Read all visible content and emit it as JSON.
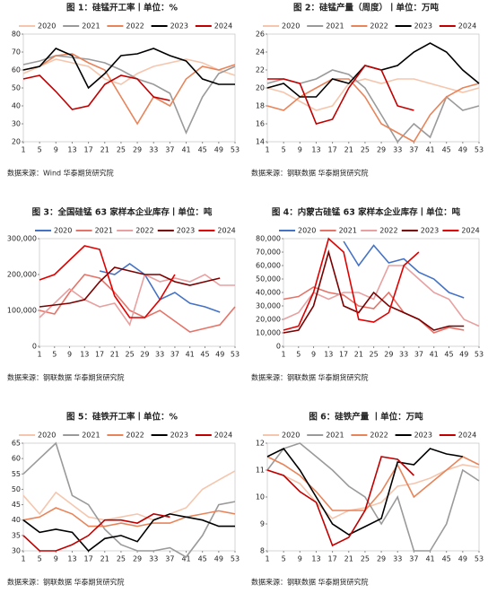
{
  "chart_data": [
    {
      "type": "line",
      "title": "图 1：硅锰开工率丨单位：%",
      "source": "数据来源：Wind  华泰期货研究院",
      "legend": "top",
      "x": [
        1,
        5,
        9,
        13,
        17,
        21,
        25,
        29,
        33,
        37,
        41,
        45,
        49,
        53
      ],
      "xlim": [
        1,
        53
      ],
      "xticks": [
        1,
        5,
        9,
        13,
        17,
        21,
        25,
        29,
        33,
        37,
        41,
        45,
        49,
        53
      ],
      "ylim": [
        20,
        80
      ],
      "yticks": [
        20,
        30,
        40,
        50,
        60,
        70,
        80
      ],
      "series": [
        {
          "name": "2020",
          "color": "#f5c6ad",
          "values": [
            58,
            62,
            66,
            64,
            62,
            55,
            52,
            58,
            62,
            64,
            66,
            64,
            60,
            57
          ]
        },
        {
          "name": "2021",
          "color": "#9a9a9a",
          "values": [
            63,
            65,
            68,
            67,
            66,
            64,
            60,
            55,
            52,
            47,
            25,
            45,
            58,
            62
          ]
        },
        {
          "name": "2022",
          "color": "#e8845a",
          "values": [
            60,
            62,
            68,
            69,
            64,
            60,
            45,
            30,
            45,
            40,
            55,
            62,
            60,
            63
          ]
        },
        {
          "name": "2023",
          "color": "#000000",
          "values": [
            60,
            62,
            72,
            68,
            50,
            58,
            68,
            69,
            72,
            68,
            65,
            55,
            52,
            52
          ]
        },
        {
          "name": "2024",
          "color": "#c00000",
          "values": [
            55,
            57,
            48,
            38,
            40,
            52,
            57,
            55,
            45,
            43,
            null,
            null,
            null,
            null
          ]
        }
      ]
    },
    {
      "type": "line",
      "title": "图 2：硅锰产量（周度）丨单位：万吨",
      "source": "数据来源：钢联数据  华泰期货研究院",
      "legend": "top",
      "x": [
        1,
        5,
        9,
        13,
        17,
        21,
        25,
        29,
        33,
        37,
        41,
        45,
        49,
        53
      ],
      "xlim": [
        1,
        53
      ],
      "xticks": [
        1,
        5,
        9,
        13,
        17,
        21,
        25,
        29,
        33,
        37,
        41,
        45,
        49,
        53
      ],
      "ylim": [
        14,
        26
      ],
      "yticks": [
        14,
        16,
        18,
        20,
        22,
        24,
        26
      ],
      "series": [
        {
          "name": "2020",
          "color": "#f5c6ad",
          "values": [
            20,
            19.5,
            18.5,
            17.5,
            18,
            20.5,
            21,
            20.5,
            21,
            21,
            20.5,
            20,
            19.5,
            20
          ]
        },
        {
          "name": "2021",
          "color": "#9a9a9a",
          "values": [
            20.5,
            21,
            20.5,
            21,
            22,
            21.5,
            20,
            17,
            14,
            16,
            14.5,
            19,
            17.5,
            18
          ]
        },
        {
          "name": "2022",
          "color": "#e8845a",
          "values": [
            18,
            17.5,
            19,
            20,
            21,
            21,
            19,
            16,
            15,
            14,
            17,
            19,
            20,
            20.5
          ]
        },
        {
          "name": "2023",
          "color": "#000000",
          "values": [
            20,
            20.5,
            19,
            19,
            21,
            20.5,
            22.5,
            22,
            22.5,
            24,
            25,
            24,
            22,
            20.5
          ]
        },
        {
          "name": "2024",
          "color": "#c00000",
          "values": [
            21,
            21,
            20.5,
            16,
            16.5,
            20,
            22.5,
            22,
            18,
            17.5,
            null,
            null,
            null,
            null
          ]
        }
      ]
    },
    {
      "type": "line",
      "title": "图 3：全国硅锰 63 家样本企业库存丨单位：吨",
      "source": "数据来源：钢联数据  华泰期货研究院",
      "legend": "top",
      "x": [
        1,
        5,
        9,
        13,
        17,
        21,
        25,
        29,
        33,
        37,
        41,
        45,
        49,
        53
      ],
      "xlim": [
        1,
        53
      ],
      "xticks": [
        1,
        5,
        9,
        13,
        17,
        21,
        25,
        29,
        33,
        37,
        41,
        45,
        49,
        53
      ],
      "ylim": [
        0,
        300000
      ],
      "yticks": [
        0,
        {
          "value": 100000,
          "label": "100,000"
        },
        {
          "value": 200000,
          "label": "200,000"
        },
        {
          "value": 300000,
          "label": "300,000"
        }
      ],
      "series": [
        {
          "name": "2020",
          "color": "#4472c4",
          "values": [
            null,
            null,
            null,
            null,
            210000,
            200000,
            230000,
            200000,
            130000,
            150000,
            120000,
            110000,
            95000,
            null
          ]
        },
        {
          "name": "2021",
          "color": "#e57368",
          "values": [
            100000,
            90000,
            150000,
            200000,
            190000,
            150000,
            100000,
            80000,
            100000,
            70000,
            40000,
            50000,
            60000,
            110000
          ]
        },
        {
          "name": "2022",
          "color": "#e8a0a0",
          "values": [
            80000,
            120000,
            160000,
            130000,
            110000,
            120000,
            60000,
            200000,
            180000,
            190000,
            180000,
            200000,
            170000,
            170000
          ]
        },
        {
          "name": "2023",
          "color": "#7b0000",
          "values": [
            110000,
            115000,
            120000,
            130000,
            180000,
            220000,
            210000,
            200000,
            200000,
            180000,
            170000,
            180000,
            190000,
            null
          ]
        },
        {
          "name": "2024",
          "color": "#e00000",
          "values": [
            185000,
            200000,
            240000,
            280000,
            270000,
            140000,
            80000,
            80000,
            130000,
            200000,
            null,
            null,
            null,
            null
          ]
        }
      ]
    },
    {
      "type": "line",
      "title": "图 4：内蒙古硅锰 63 家样本企业库存丨单位：吨",
      "source": "数据来源：钢联数据  华泰期货研究院",
      "legend": "top",
      "x": [
        1,
        5,
        9,
        13,
        17,
        21,
        25,
        29,
        33,
        37,
        41,
        45,
        49,
        53
      ],
      "xlim": [
        1,
        53
      ],
      "xticks": [
        1,
        5,
        9,
        13,
        17,
        21,
        25,
        29,
        33,
        37,
        41,
        45,
        49,
        53
      ],
      "ylim": [
        0,
        80000
      ],
      "yticks": [
        0,
        {
          "value": 10000,
          "label": "10,000"
        },
        {
          "value": 20000,
          "label": "20,000"
        },
        {
          "value": 30000,
          "label": "30,000"
        },
        {
          "value": 40000,
          "label": "40,000"
        },
        {
          "value": 50000,
          "label": "50,000"
        },
        {
          "value": 60000,
          "label": "60,000"
        },
        {
          "value": 70000,
          "label": "70,000"
        },
        {
          "value": 80000,
          "label": "80,000"
        }
      ],
      "series": [
        {
          "name": "2020",
          "color": "#4472c4",
          "values": [
            null,
            null,
            null,
            null,
            78000,
            60000,
            75000,
            62000,
            65000,
            55000,
            50000,
            40000,
            36000,
            null
          ]
        },
        {
          "name": "2021",
          "color": "#e57368",
          "values": [
            35000,
            37000,
            44000,
            40000,
            38000,
            30000,
            28000,
            40000,
            25000,
            20000,
            10000,
            14000,
            12000,
            null
          ]
        },
        {
          "name": "2022",
          "color": "#e8a0a0",
          "values": [
            20000,
            25000,
            40000,
            35000,
            40000,
            40000,
            35000,
            60000,
            60000,
            50000,
            40000,
            35000,
            20000,
            15000
          ]
        },
        {
          "name": "2023",
          "color": "#7b0000",
          "values": [
            10000,
            12000,
            30000,
            70000,
            30000,
            25000,
            40000,
            30000,
            25000,
            20000,
            12000,
            15000,
            15000,
            null
          ]
        },
        {
          "name": "2024",
          "color": "#e00000",
          "values": [
            12000,
            15000,
            40000,
            80000,
            70000,
            20000,
            18000,
            25000,
            60000,
            70000,
            null,
            null,
            null,
            null
          ]
        }
      ]
    },
    {
      "type": "line",
      "title": "图 5：硅铁开工率丨单位：%",
      "source": "数据来源：钢联数据  华泰期货研究院",
      "legend": "top",
      "x": [
        1,
        5,
        9,
        13,
        17,
        21,
        25,
        29,
        33,
        37,
        41,
        45,
        49,
        53
      ],
      "xlim": [
        1,
        53
      ],
      "xticks": [
        1,
        5,
        9,
        13,
        17,
        21,
        25,
        29,
        33,
        37,
        41,
        45,
        49,
        53
      ],
      "ylim": [
        30,
        65
      ],
      "yticks": [
        30,
        35,
        40,
        45,
        50,
        55,
        60,
        65
      ],
      "series": [
        {
          "name": "2020",
          "color": "#f5c6ad",
          "values": [
            48,
            42,
            49,
            45,
            41,
            40,
            41,
            42,
            40,
            42,
            44,
            50,
            53,
            56
          ]
        },
        {
          "name": "2021",
          "color": "#9a9a9a",
          "values": [
            55,
            60,
            65,
            48,
            45,
            37,
            32,
            30,
            30,
            31,
            28,
            35,
            45,
            46
          ]
        },
        {
          "name": "2022",
          "color": "#e8845a",
          "values": [
            40,
            41,
            44,
            42,
            38,
            38,
            39,
            38,
            39,
            39,
            41,
            42,
            43,
            42
          ]
        },
        {
          "name": "2023",
          "color": "#000000",
          "values": [
            40,
            36,
            37,
            36,
            30,
            34,
            35,
            33,
            40,
            42,
            41,
            40,
            38,
            38
          ]
        },
        {
          "name": "2024",
          "color": "#c00000",
          "values": [
            35,
            30,
            30,
            32,
            35,
            40,
            40,
            39,
            42,
            41,
            null,
            null,
            null,
            null
          ]
        }
      ]
    },
    {
      "type": "line",
      "title": "图 6：硅铁产量 丨单位：万吨",
      "source": "数据来源：钢联数据  华泰期货研究院",
      "legend": "top",
      "x": [
        1,
        5,
        9,
        13,
        17,
        21,
        25,
        29,
        33,
        37,
        41,
        45,
        49,
        53
      ],
      "xlim": [
        1,
        53
      ],
      "xticks": [
        1,
        5,
        9,
        13,
        17,
        21,
        25,
        29,
        33,
        37,
        41,
        45,
        49,
        53
      ],
      "ylim": [
        8,
        12
      ],
      "yticks": [
        8,
        9,
        10,
        11,
        12
      ],
      "series": [
        {
          "name": "2020",
          "color": "#f5c6ad",
          "values": [
            11,
            10.8,
            10.5,
            9.8,
            9.2,
            9.5,
            9.6,
            9.8,
            10.4,
            10.5,
            10.7,
            11,
            11.2,
            11.1
          ]
        },
        {
          "name": "2021",
          "color": "#9a9a9a",
          "values": [
            11,
            11.8,
            12,
            11.5,
            11,
            10.4,
            10,
            9,
            10,
            8,
            8,
            9,
            11,
            10.6
          ]
        },
        {
          "name": "2022",
          "color": "#e8845a",
          "values": [
            11.5,
            11.2,
            10.8,
            10.2,
            9.5,
            9.5,
            9.5,
            10.2,
            11.2,
            10,
            10.5,
            11,
            11.5,
            11.2
          ]
        },
        {
          "name": "2023",
          "color": "#000000",
          "values": [
            11.5,
            11.8,
            11,
            10,
            9,
            8.6,
            8.9,
            9.2,
            11.3,
            11.2,
            11.8,
            11.6,
            11.5,
            null
          ]
        },
        {
          "name": "2024",
          "color": "#c00000",
          "values": [
            11,
            10.8,
            10.2,
            9.8,
            8.2,
            8.5,
            9.5,
            11.5,
            11.4,
            10.8,
            null,
            null,
            null,
            null
          ]
        }
      ]
    }
  ]
}
